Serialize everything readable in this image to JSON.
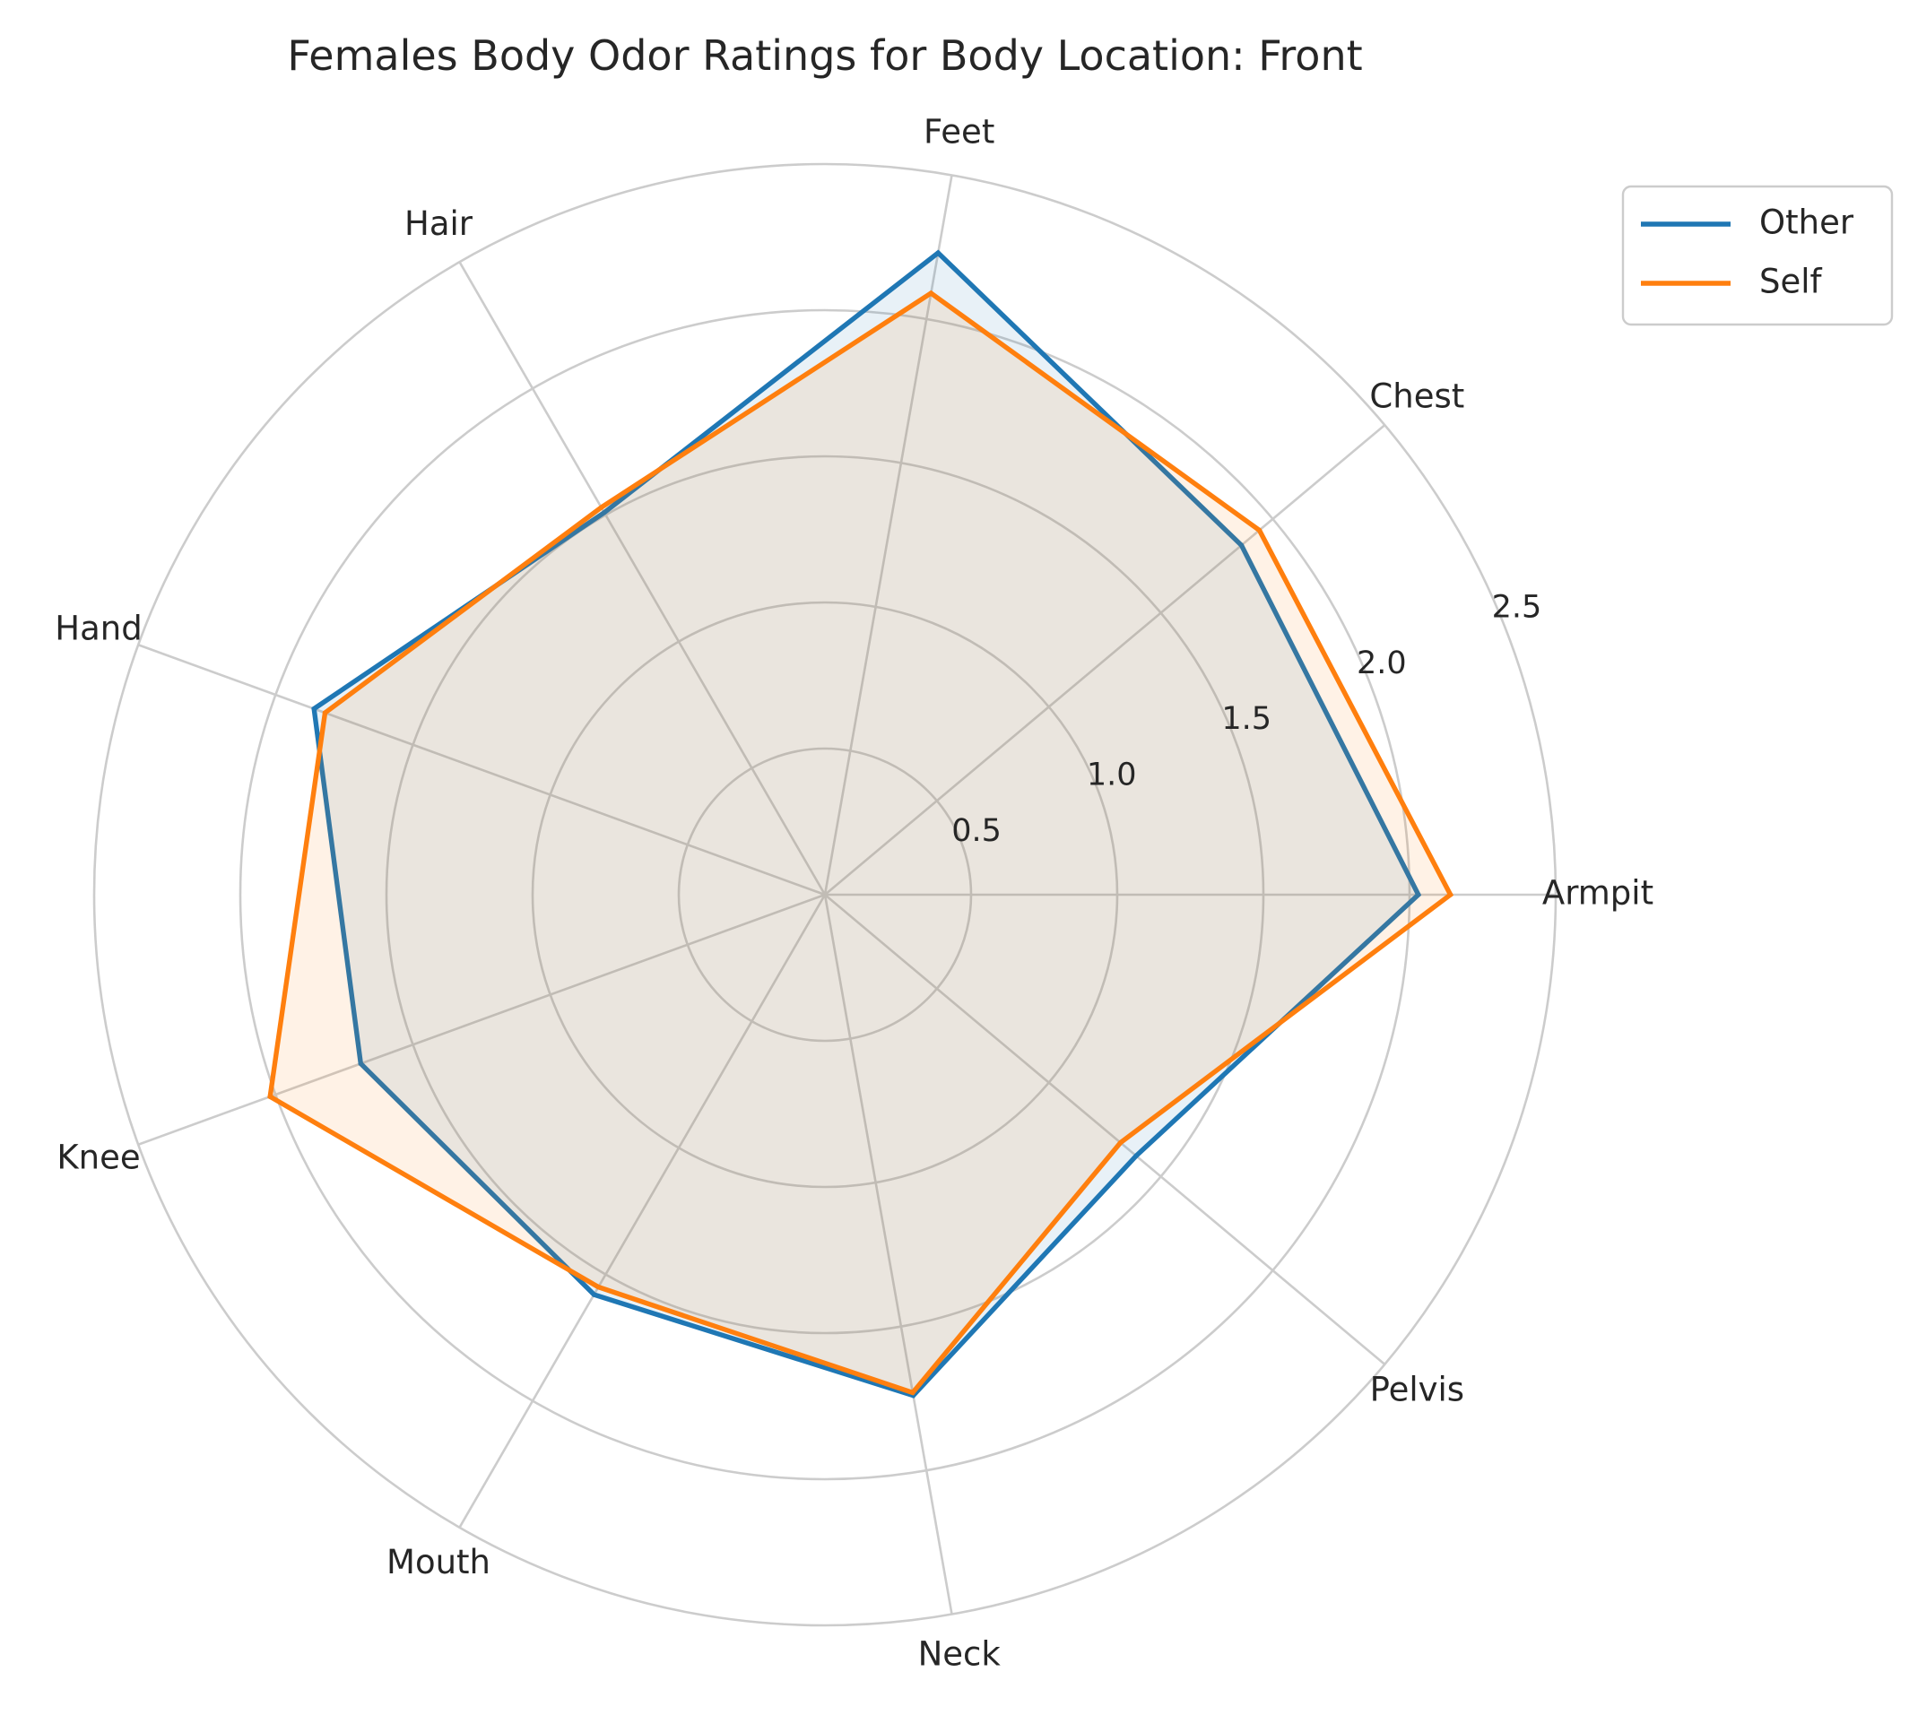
{
  "chart_data": {
    "type": "radar",
    "title": "Females Body Odor Ratings for Body Location: Front",
    "categories": [
      "Armpit",
      "Chest",
      "Feet",
      "Hair",
      "Hand",
      "Knee",
      "Mouth",
      "Neck",
      "Pelvis"
    ],
    "radial_ticks": [
      "0.5",
      "1.0",
      "1.5",
      "2.0",
      "2.5"
    ],
    "rlim": [
      0,
      2.5
    ],
    "grid": true,
    "legend_position": "top-right, outside plot",
    "series": [
      {
        "name": "Other",
        "color": "#1f77b4",
        "values": [
          2.03,
          1.86,
          2.23,
          1.51,
          1.86,
          1.69,
          1.58,
          1.74,
          1.39
        ]
      },
      {
        "name": "Self",
        "color": "#ff7f0e",
        "values": [
          2.14,
          1.94,
          2.09,
          1.53,
          1.82,
          2.02,
          1.55,
          1.73,
          1.32
        ]
      }
    ]
  }
}
